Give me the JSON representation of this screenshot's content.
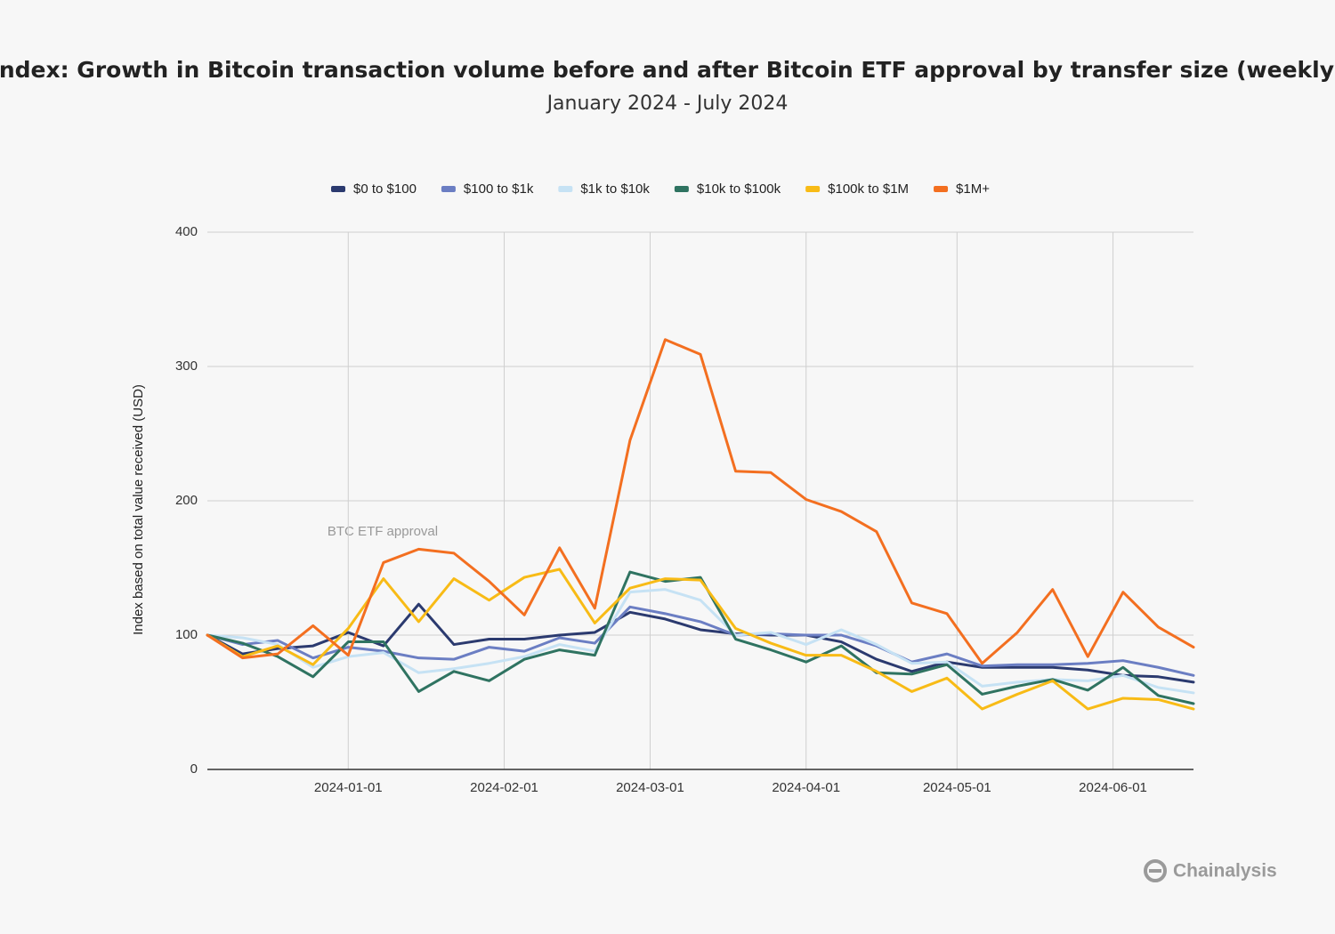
{
  "chart_data": {
    "type": "line",
    "title": "Index: Growth in Bitcoin transaction volume before and after Bitcoin ETF approval by transfer size (weekly)",
    "subtitle": "January 2024 - July 2024",
    "y_label": "Index based on total value received (USD)",
    "annotation": "BTC ETF approval",
    "x": [
      "2023-12-04",
      "2023-12-11",
      "2023-12-18",
      "2023-12-25",
      "2024-01-01",
      "2024-01-08",
      "2024-01-15",
      "2024-01-22",
      "2024-01-29",
      "2024-02-05",
      "2024-02-12",
      "2024-02-19",
      "2024-02-26",
      "2024-03-04",
      "2024-03-11",
      "2024-03-18",
      "2024-03-25",
      "2024-04-01",
      "2024-04-08",
      "2024-04-15",
      "2024-04-22",
      "2024-04-29",
      "2024-05-06",
      "2024-05-13",
      "2024-05-20",
      "2024-05-27",
      "2024-06-03",
      "2024-06-10",
      "2024-06-17"
    ],
    "xlim": [
      "2023-12-04",
      "2024-06-17"
    ],
    "xticks": [
      "2024-01-01",
      "2024-02-01",
      "2024-03-01",
      "2024-04-01",
      "2024-05-01",
      "2024-06-01"
    ],
    "ylim": [
      0,
      400
    ],
    "yticks": [
      0,
      100,
      200,
      300,
      400
    ],
    "grid": true,
    "legend": "top",
    "series": [
      {
        "name": "$0 to $100",
        "color": "#2b3a6f",
        "values": [
          100,
          86,
          90,
          92,
          102,
          92,
          123,
          93,
          97,
          97,
          100,
          102,
          117,
          112,
          104,
          101,
          100,
          100,
          95,
          82,
          73,
          80,
          76,
          76,
          76,
          74,
          70,
          69,
          65
        ]
      },
      {
        "name": "$100 to $1k",
        "color": "#6b7ec3",
        "values": [
          100,
          93,
          96,
          83,
          91,
          88,
          83,
          82,
          91,
          88,
          98,
          94,
          121,
          116,
          110,
          100,
          101,
          100,
          100,
          92,
          80,
          86,
          77,
          78,
          78,
          79,
          81,
          76,
          70
        ]
      },
      {
        "name": "$1k to $10k",
        "color": "#c6e2f4",
        "values": [
          100,
          98,
          93,
          76,
          84,
          87,
          72,
          75,
          79,
          84,
          93,
          88,
          132,
          134,
          126,
          100,
          102,
          93,
          104,
          93,
          79,
          80,
          62,
          65,
          67,
          66,
          70,
          61,
          57
        ]
      },
      {
        "name": "$10k to $100k",
        "color": "#2f7361",
        "values": [
          100,
          94,
          84,
          69,
          95,
          95,
          58,
          73,
          66,
          82,
          89,
          85,
          147,
          140,
          143,
          97,
          89,
          80,
          92,
          72,
          71,
          78,
          56,
          62,
          67,
          59,
          76,
          55,
          49
        ]
      },
      {
        "name": "$100k to $1M",
        "color": "#f8bb16",
        "values": [
          100,
          84,
          92,
          78,
          105,
          142,
          110,
          142,
          126,
          143,
          149,
          109,
          135,
          142,
          141,
          105,
          94,
          85,
          85,
          73,
          58,
          68,
          45,
          56,
          66,
          45,
          53,
          52,
          45
        ]
      },
      {
        "name": "$1M+",
        "color": "#f36f20",
        "values": [
          100,
          83,
          86,
          107,
          85,
          154,
          164,
          161,
          140,
          115,
          165,
          120,
          245,
          320,
          309,
          222,
          221,
          201,
          192,
          177,
          124,
          116,
          79,
          102,
          134,
          84,
          132,
          106,
          91
        ]
      }
    ]
  },
  "logo": "Chainalysis"
}
